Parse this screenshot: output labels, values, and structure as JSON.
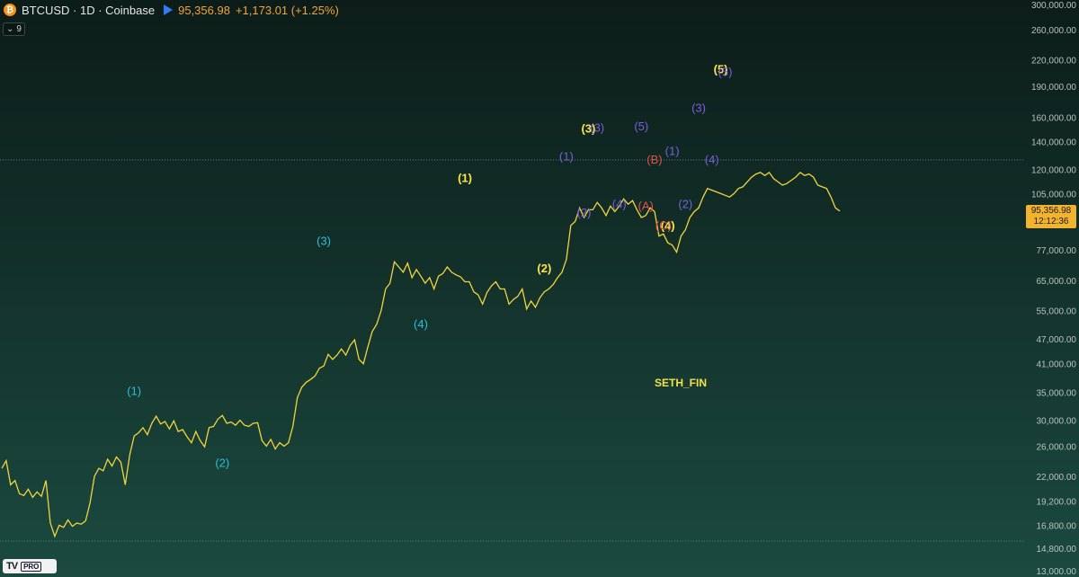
{
  "header": {
    "symbol_line": "BTCUSD · 1D · Coinbase",
    "price": "95,356.98",
    "change": "+1,173.01 (+1.25%)",
    "coin_glyph": "₿",
    "indicator_count": "9"
  },
  "price_badge": {
    "price": "95,356.98",
    "countdown": "12:12:36"
  },
  "watermark": "SETH_FIN",
  "logo": {
    "mark": "TV",
    "tier": "PRO"
  },
  "colors": {
    "line": "#f2d43c",
    "cyan": "#2cc0d6",
    "yellow": "#ffe44a",
    "purple": "#7a5fe0",
    "red": "#e8504a",
    "orange": "#ff9a2e",
    "badge": "#f2b32e"
  },
  "chart_data": {
    "type": "line",
    "scale": "log",
    "ylim": [
      13000,
      300000
    ],
    "y_ticks": [
      "300,000.00",
      "260,000.00",
      "220,000.00",
      "190,000.00",
      "160,000.00",
      "140,000.00",
      "120,000.00",
      "105,000.00",
      "77,000.00",
      "65,000.00",
      "55,000.00",
      "47,000.00",
      "41,000.00",
      "35,000.00",
      "30,000.00",
      "26,000.00",
      "22,000.00",
      "19,200.00",
      "16,800.00",
      "14,800.00",
      "13,000.00"
    ],
    "y_tick_values": [
      300000,
      260000,
      220000,
      190000,
      160000,
      140000,
      120000,
      105000,
      77000,
      65000,
      55000,
      47000,
      41000,
      35000,
      30000,
      26000,
      22000,
      19200,
      16800,
      14800,
      13000
    ],
    "series": [
      {
        "x": [
          0,
          1,
          2,
          3,
          4,
          5,
          6,
          7,
          8,
          9,
          10,
          11,
          12,
          13,
          14,
          15,
          16,
          17,
          18,
          19,
          20,
          21,
          22,
          23,
          24,
          25,
          26,
          27,
          28,
          29,
          30,
          31,
          32,
          33,
          34,
          35,
          36,
          37,
          38,
          39,
          40,
          41,
          42,
          43,
          44,
          45,
          46,
          47,
          48,
          49,
          50,
          51,
          52,
          53,
          54,
          55,
          56,
          57,
          58,
          59,
          60,
          61,
          62,
          63,
          64,
          65,
          66,
          67,
          68,
          69,
          70,
          71,
          72,
          73,
          74,
          75,
          76,
          77,
          78,
          79,
          80,
          81,
          82,
          83,
          84,
          85,
          86,
          87,
          88,
          89,
          90,
          91,
          92,
          93,
          94,
          95,
          96,
          97,
          98,
          99,
          100,
          101,
          102,
          103,
          104,
          105,
          106,
          107,
          108,
          109,
          110,
          111,
          112,
          113,
          114,
          115,
          116,
          117,
          118,
          119,
          120,
          121,
          122,
          123,
          124,
          125,
          126,
          127,
          128,
          129,
          130,
          131,
          132,
          133,
          134,
          135,
          136,
          137,
          138,
          139,
          140,
          141,
          142,
          143,
          144,
          145,
          146,
          147,
          148,
          149,
          150,
          151,
          152,
          153,
          154,
          155,
          156,
          157,
          158,
          159,
          160,
          161,
          162,
          163,
          164,
          165,
          166,
          167,
          168,
          169,
          170,
          171,
          172,
          173,
          174,
          175,
          176,
          177,
          178,
          179,
          180,
          181,
          182,
          183,
          184,
          185,
          186,
          187,
          188,
          189,
          190
        ],
        "values": [
          23000,
          24000,
          21000,
          21500,
          20000,
          19800,
          20500,
          19600,
          20200,
          19700,
          21500,
          17000,
          15800,
          16800,
          16600,
          17300,
          16700,
          17000,
          16900,
          17200,
          19000,
          22000,
          23000,
          22700,
          24200,
          23300,
          24500,
          23800,
          21000,
          24800,
          27500,
          28000,
          28800,
          27700,
          29500,
          30700,
          29400,
          29800,
          28600,
          29900,
          28200,
          28500,
          27400,
          26500,
          28200,
          26800,
          25900,
          28800,
          29000,
          30200,
          30800,
          29500,
          29700,
          29200,
          30000,
          29200,
          29000,
          29500,
          29600,
          26800,
          26000,
          27000,
          25600,
          26500,
          26000,
          26500,
          29000,
          34000,
          36000,
          37000,
          37600,
          38300,
          40000,
          40500,
          43200,
          42000,
          43000,
          44500,
          43000,
          45400,
          46800,
          42000,
          41000,
          45000,
          49000,
          51000,
          55000,
          62000,
          64000,
          72000,
          70000,
          68000,
          71500,
          66000,
          69000,
          66500,
          64000,
          66000,
          62000,
          66500,
          67500,
          70000,
          68000,
          67000,
          66300,
          64500,
          64500,
          61000,
          60000,
          57000,
          60800,
          63000,
          64500,
          62000,
          62000,
          57000,
          58500,
          59500,
          62000,
          55500,
          58000,
          56000,
          59000,
          61000,
          62000,
          63500,
          66000,
          68000,
          73000,
          88000,
          90000,
          97000,
          92000,
          96000,
          96000,
          100000,
          97000,
          93000,
          98000,
          95000,
          98000,
          102000,
          99000,
          101000,
          96000,
          92000,
          93000,
          97000,
          95000,
          83000,
          84000,
          80000,
          79000,
          76000,
          83000,
          86000,
          92000,
          95000,
          97000,
          103000,
          108000,
          107000,
          106000,
          105000,
          104000,
          103000,
          105000,
          108000,
          109000,
          112000,
          115000,
          117000,
          118000,
          116000,
          118000,
          114000,
          112000,
          110000,
          111000,
          113000,
          115000,
          118000,
          116000,
          117000,
          115000,
          110000,
          109000,
          108000,
          103000,
          97000,
          95357
        ]
      }
    ],
    "annotations": [
      {
        "text": "(1)",
        "series": "cyan",
        "x": 30,
        "y": 34500
      },
      {
        "text": "(2)",
        "series": "cyan",
        "x": 50,
        "y": 23200
      },
      {
        "text": "(3)",
        "series": "cyan",
        "x": 73,
        "y": 79000
      },
      {
        "text": "(4)",
        "series": "cyan",
        "x": 95,
        "y": 50000
      },
      {
        "text": "(1)",
        "series": "yellow",
        "x": 105,
        "y": 112000
      },
      {
        "text": "(2)",
        "series": "yellow",
        "x": 123,
        "y": 68000
      },
      {
        "text": "(3)",
        "series": "yellow",
        "x": 133,
        "y": 147000
      },
      {
        "text": "(4)",
        "series": "yellow",
        "x": 151,
        "y": 86000
      },
      {
        "text": "(5)",
        "series": "yellow",
        "x": 163,
        "y": 204000
      },
      {
        "text": "(1)",
        "series": "purple",
        "x": 128,
        "y": 126000
      },
      {
        "text": "(2)",
        "series": "purple",
        "x": 132,
        "y": 92500
      },
      {
        "text": "(3)",
        "series": "purple",
        "x": 135,
        "y": 148000
      },
      {
        "text": "(4)",
        "series": "purple",
        "x": 140,
        "y": 97000
      },
      {
        "text": "(5)",
        "series": "purple",
        "x": 145,
        "y": 149000
      },
      {
        "text": "(1)",
        "series": "purple",
        "x": 152,
        "y": 130000
      },
      {
        "text": "(2)",
        "series": "purple",
        "x": 155,
        "y": 97000
      },
      {
        "text": "(3)",
        "series": "purple",
        "x": 158,
        "y": 165000
      },
      {
        "text": "(4)",
        "series": "purple",
        "x": 161,
        "y": 124000
      },
      {
        "text": "(5)",
        "series": "purple",
        "x": 164,
        "y": 201000
      },
      {
        "text": "(A)",
        "series": "red",
        "x": 146,
        "y": 96000
      },
      {
        "text": "(B)",
        "series": "red",
        "x": 148,
        "y": 124000
      },
      {
        "text": "(C)",
        "series": "red",
        "x": 150,
        "y": 86000
      }
    ]
  }
}
